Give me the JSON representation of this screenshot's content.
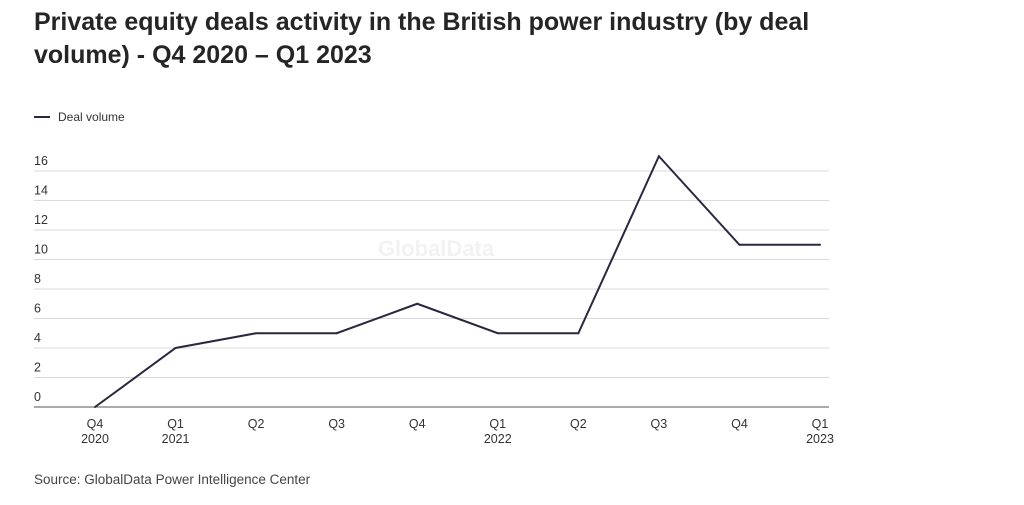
{
  "header": {
    "title": "Private equity deals activity in the British power industry (by deal volume) - Q4 2020 – Q1 2023"
  },
  "footer": {
    "source": "Source: GlobalData Power Intelligence Center"
  },
  "watermark": "GlobalData",
  "colors": {
    "line": "#2d2640",
    "grid": "#d9d9d9",
    "axis": "#555555"
  },
  "chart_data": {
    "type": "line",
    "title": "Private equity deals activity in the British power industry (by deal volume) - Q4 2020 – Q1 2023",
    "xlabel": "",
    "ylabel": "",
    "categories": [
      [
        "Q4",
        "2020"
      ],
      [
        "Q1",
        "2021"
      ],
      [
        "Q2"
      ],
      [
        "Q3"
      ],
      [
        "Q4"
      ],
      [
        "Q1",
        "2022"
      ],
      [
        "Q2"
      ],
      [
        "Q3"
      ],
      [
        "Q4"
      ],
      [
        "Q1",
        "2023"
      ]
    ],
    "series": [
      {
        "name": "Deal volume",
        "values": [
          0,
          4,
          5,
          5,
          7,
          5,
          5,
          17,
          11,
          11
        ]
      }
    ],
    "yticks": [
      0,
      2,
      4,
      6,
      8,
      10,
      12,
      14,
      16
    ],
    "ylim": [
      0,
      17
    ],
    "grid": true,
    "legend_position": "top-left"
  }
}
